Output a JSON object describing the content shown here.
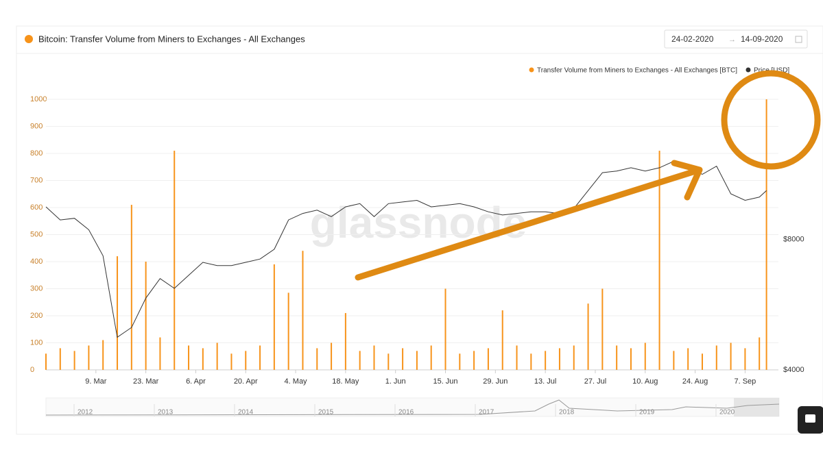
{
  "chart_data": {
    "type": "bar-line",
    "title": "Bitcoin: Transfer Volume from Miners to Exchanges - All Exchanges",
    "x": [
      "2020-02-24",
      "2020-02-28",
      "2020-03-03",
      "2020-03-07",
      "2020-03-11",
      "2020-03-15",
      "2020-03-19",
      "2020-03-23",
      "2020-03-27",
      "2020-03-31",
      "2020-04-04",
      "2020-04-08",
      "2020-04-12",
      "2020-04-16",
      "2020-04-20",
      "2020-04-24",
      "2020-04-28",
      "2020-05-02",
      "2020-05-06",
      "2020-05-10",
      "2020-05-14",
      "2020-05-18",
      "2020-05-22",
      "2020-05-26",
      "2020-05-30",
      "2020-06-03",
      "2020-06-07",
      "2020-06-11",
      "2020-06-15",
      "2020-06-19",
      "2020-06-23",
      "2020-06-27",
      "2020-07-01",
      "2020-07-05",
      "2020-07-09",
      "2020-07-13",
      "2020-07-17",
      "2020-07-21",
      "2020-07-25",
      "2020-07-29",
      "2020-08-02",
      "2020-08-06",
      "2020-08-10",
      "2020-08-14",
      "2020-08-18",
      "2020-08-22",
      "2020-08-26",
      "2020-08-30",
      "2020-09-03",
      "2020-09-07",
      "2020-09-11",
      "2020-09-13"
    ],
    "series": [
      {
        "name": "Transfer Volume from Miners to Exchanges - All Exchanges [BTC]",
        "color": "#f7931a",
        "kind": "bar",
        "values": [
          60,
          80,
          70,
          90,
          110,
          420,
          610,
          400,
          120,
          810,
          90,
          80,
          100,
          60,
          70,
          90,
          390,
          285,
          440,
          80,
          100,
          210,
          70,
          90,
          60,
          80,
          70,
          90,
          300,
          60,
          70,
          80,
          220,
          90,
          60,
          70,
          80,
          90,
          245,
          300,
          90,
          80,
          100,
          810,
          70,
          80,
          60,
          90,
          100,
          80,
          120,
          1000
        ]
      },
      {
        "name": "Price [USD]",
        "color": "#333333",
        "kind": "line",
        "axis": "y2",
        "values": [
          9000,
          8600,
          8650,
          8300,
          7500,
          5000,
          5300,
          6200,
          6800,
          6500,
          6900,
          7300,
          7200,
          7200,
          7300,
          7400,
          7700,
          8600,
          8800,
          8900,
          8700,
          9000,
          9100,
          8700,
          9100,
          9150,
          9200,
          9000,
          9050,
          9100,
          9000,
          8850,
          8750,
          8800,
          8850,
          8850,
          8800,
          8950,
          9500,
          10050,
          10100,
          10200,
          10100,
          10200,
          10400,
          10200,
          10000,
          10250,
          9400,
          9200,
          9300,
          9500
        ]
      }
    ],
    "xlim": [
      "2020-02-24",
      "2020-09-15"
    ],
    "xticks": [
      {
        "value": "2020-03-09",
        "label": "9. Mar"
      },
      {
        "value": "2020-03-23",
        "label": "23. Mar"
      },
      {
        "value": "2020-04-06",
        "label": "6. Apr"
      },
      {
        "value": "2020-04-20",
        "label": "20. Apr"
      },
      {
        "value": "2020-05-04",
        "label": "4. May"
      },
      {
        "value": "2020-05-18",
        "label": "18. May"
      },
      {
        "value": "2020-06-01",
        "label": "1. Jun"
      },
      {
        "value": "2020-06-15",
        "label": "15. Jun"
      },
      {
        "value": "2020-06-29",
        "label": "29. Jun"
      },
      {
        "value": "2020-07-13",
        "label": "13. Jul"
      },
      {
        "value": "2020-07-27",
        "label": "27. Jul"
      },
      {
        "value": "2020-08-10",
        "label": "10. Aug"
      },
      {
        "value": "2020-08-24",
        "label": "24. Aug"
      },
      {
        "value": "2020-09-07",
        "label": "7. Sep"
      }
    ],
    "ylim": [
      0,
      1000
    ],
    "yticks": [
      0,
      100,
      200,
      300,
      400,
      500,
      600,
      700,
      800,
      900,
      1000
    ],
    "y2lim": [
      4000,
      12300
    ],
    "y2ticks": [
      {
        "value": 4000,
        "label": "$4000"
      },
      {
        "value": 8000,
        "label": "$8000"
      }
    ],
    "grid": true,
    "legend": "top-right",
    "watermark": "glassnode"
  },
  "date_range": {
    "start": "24-02-2020",
    "end": "14-09-2020"
  },
  "navigator": {
    "labels": [
      "2012",
      "2013",
      "2014",
      "2015",
      "2016",
      "2017",
      "2018",
      "2019",
      "2020"
    ]
  }
}
